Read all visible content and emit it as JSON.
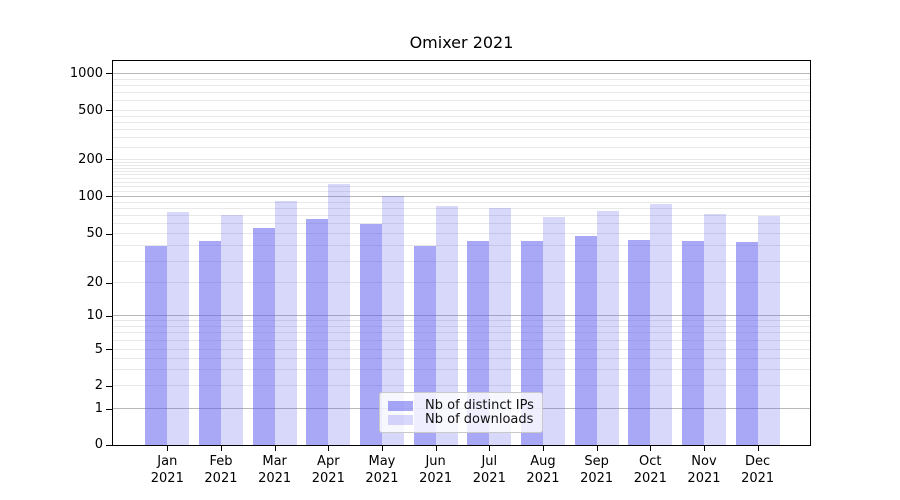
{
  "title": "Omixer 2021",
  "colors": {
    "series_ips": "rgba(90,90,240,0.53)",
    "series_downloads": "rgba(90,90,240,0.24)",
    "axis": "#000000",
    "grid_major": "rgba(0,0,0,0.28)",
    "grid_minor": "rgba(0,0,0,0.09)",
    "legend_border": "#c9c9c9"
  },
  "chart_data": {
    "type": "bar",
    "title": "Omixer 2021",
    "categories": [
      "Jan",
      "Feb",
      "Mar",
      "Apr",
      "May",
      "Jun",
      "Jul",
      "Aug",
      "Sep",
      "Oct",
      "Nov",
      "Dec"
    ],
    "x_year_label": "2021",
    "series": [
      {
        "name": "Nb of distinct IPs",
        "color": "rgba(90,90,240,0.53)",
        "values": [
          40,
          44,
          56,
          66,
          60,
          40,
          44,
          44,
          48,
          45,
          44,
          43
        ]
      },
      {
        "name": "Nb of downloads",
        "color": "rgba(90,90,240,0.24)",
        "values": [
          75,
          72,
          92,
          127,
          101,
          84,
          82,
          69,
          77,
          87,
          73,
          70
        ]
      }
    ],
    "y_ticks": [
      0,
      1,
      2,
      5,
      10,
      20,
      50,
      100,
      200,
      500,
      1000
    ],
    "y_scale": "symlog",
    "ylim": [
      0,
      1300
    ],
    "xlabel": "",
    "ylabel": "",
    "grid": true,
    "legend_position": "lower center"
  }
}
